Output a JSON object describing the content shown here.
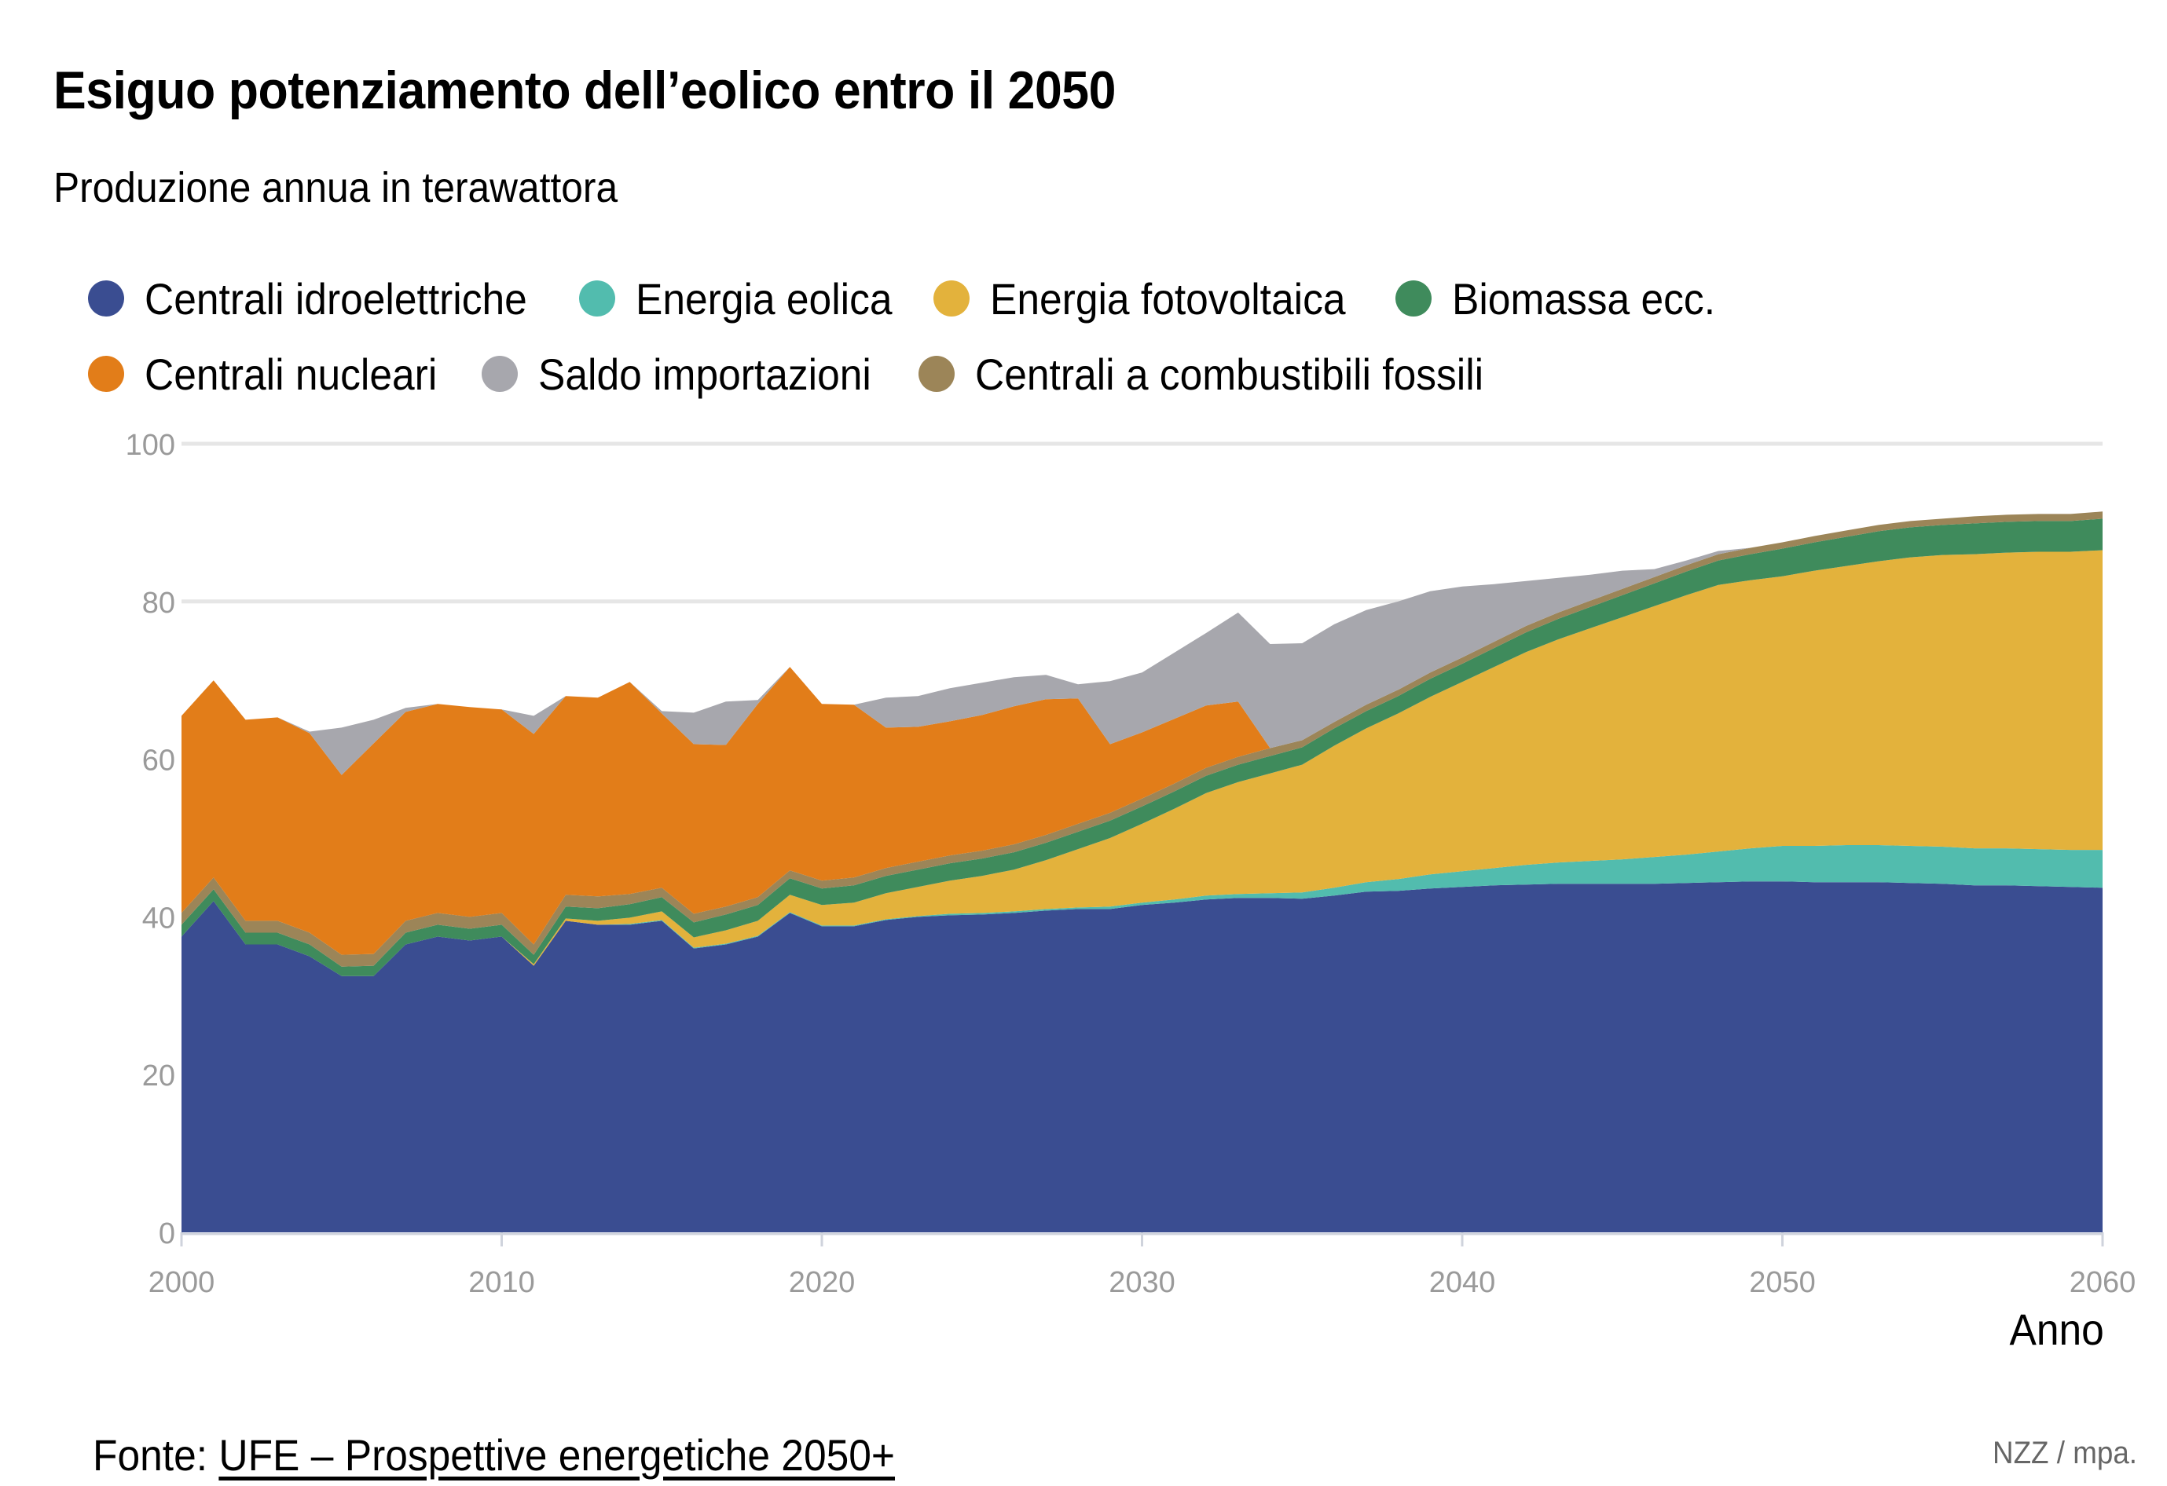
{
  "header": {
    "title": "Esiguo potenziamento dell’eolico entro il 2050",
    "subtitle": "Produzione annua in terawattora"
  },
  "legend": {
    "items": [
      {
        "key": "hydro",
        "label": "Centrali idroelettriche",
        "color": "#3a4d91"
      },
      {
        "key": "wind",
        "label": "Energia eolica",
        "color": "#52bcae"
      },
      {
        "key": "solar",
        "label": "Energia fotovoltaica",
        "color": "#e3b23c"
      },
      {
        "key": "biomass",
        "label": "Biomassa ecc.",
        "color": "#3f8b5c"
      },
      {
        "key": "nuclear",
        "label": "Centrali nucleari",
        "color": "#e27d19"
      },
      {
        "key": "imports",
        "label": "Saldo importazioni",
        "color": "#a7a7ad"
      },
      {
        "key": "fossil",
        "label": "Centrali a combustibili fossili",
        "color": "#9c8558"
      }
    ]
  },
  "footer": {
    "source_prefix": "Fonte: ",
    "source_link": "UFE – Prospettive energetiche 2050+",
    "credit": "NZZ / mpa."
  },
  "chart_data": {
    "type": "area",
    "stacked": true,
    "title": "Esiguo potenziamento dell’eolico entro il 2050",
    "subtitle": "Produzione annua in terawattora",
    "xlabel": "Anno",
    "ylabel": "",
    "xlim": [
      2000,
      2060
    ],
    "ylim": [
      0,
      100
    ],
    "xticks": [
      2000,
      2010,
      2020,
      2030,
      2040,
      2050,
      2060
    ],
    "yticks": [
      0,
      20,
      40,
      60,
      80,
      100
    ],
    "grid": "horizontal",
    "legend_position": "top",
    "stack_order": [
      "hydro",
      "wind",
      "solar",
      "biomass",
      "fossil",
      "nuclear",
      "imports"
    ],
    "x": [
      2000,
      2001,
      2002,
      2003,
      2004,
      2005,
      2006,
      2007,
      2008,
      2009,
      2010,
      2011,
      2012,
      2013,
      2014,
      2015,
      2016,
      2017,
      2018,
      2019,
      2020,
      2021,
      2022,
      2023,
      2024,
      2025,
      2026,
      2027,
      2028,
      2029,
      2030,
      2031,
      2032,
      2033,
      2034,
      2035,
      2036,
      2037,
      2038,
      2039,
      2040,
      2041,
      2042,
      2043,
      2044,
      2045,
      2046,
      2047,
      2048,
      2049,
      2050,
      2051,
      2052,
      2053,
      2054,
      2055,
      2056,
      2057,
      2058,
      2059,
      2060
    ],
    "series": [
      {
        "key": "hydro",
        "name": "Centrali idroelettriche",
        "values": [
          37.5,
          42.0,
          36.5,
          36.5,
          35.0,
          32.5,
          32.5,
          36.5,
          37.5,
          37.0,
          37.5,
          33.8,
          39.5,
          39.0,
          39.0,
          39.5,
          36.0,
          36.5,
          37.5,
          40.5,
          38.8,
          38.8,
          39.6,
          40.0,
          40.2,
          40.3,
          40.5,
          40.8,
          41.0,
          41.0,
          41.5,
          41.8,
          42.2,
          42.4,
          42.4,
          42.3,
          42.7,
          43.2,
          43.3,
          43.6,
          43.8,
          44.0,
          44.1,
          44.2,
          44.2,
          44.2,
          44.2,
          44.3,
          44.4,
          44.5,
          44.5,
          44.4,
          44.4,
          44.4,
          44.3,
          44.2,
          44.0,
          44.0,
          43.9,
          43.8,
          43.7
        ]
      },
      {
        "key": "wind",
        "name": "Energia eolica",
        "values": [
          0,
          0,
          0,
          0,
          0,
          0,
          0,
          0,
          0,
          0,
          0,
          0,
          0,
          0,
          0.1,
          0.1,
          0.1,
          0.1,
          0.1,
          0.1,
          0.1,
          0.1,
          0.1,
          0.1,
          0.2,
          0.2,
          0.2,
          0.2,
          0.2,
          0.3,
          0.3,
          0.4,
          0.5,
          0.5,
          0.6,
          0.8,
          1.0,
          1.2,
          1.5,
          1.8,
          2.0,
          2.2,
          2.5,
          2.7,
          2.9,
          3.1,
          3.4,
          3.6,
          3.9,
          4.2,
          4.5,
          4.6,
          4.7,
          4.7,
          4.7,
          4.7,
          4.7,
          4.7,
          4.7,
          4.7,
          4.8
        ]
      },
      {
        "key": "solar",
        "name": "Energia fotovoltaica",
        "values": [
          0,
          0,
          0,
          0,
          0,
          0,
          0,
          0,
          0,
          0,
          0,
          0.2,
          0.3,
          0.5,
          0.8,
          1.1,
          1.3,
          1.7,
          1.9,
          2.2,
          2.6,
          2.9,
          3.3,
          3.7,
          4.2,
          4.7,
          5.3,
          6.2,
          7.4,
          8.7,
          10.0,
          11.5,
          13.0,
          14.2,
          15.2,
          16.2,
          18.0,
          19.5,
          21.0,
          22.5,
          24.0,
          25.5,
          27.0,
          28.3,
          29.5,
          30.7,
          31.8,
          32.9,
          33.8,
          34.0,
          34.2,
          34.9,
          35.4,
          36.0,
          36.6,
          37.0,
          37.3,
          37.5,
          37.7,
          37.8,
          38.0
        ]
      },
      {
        "key": "biomass",
        "name": "Biomassa ecc.",
        "values": [
          1.5,
          1.5,
          1.5,
          1.5,
          1.5,
          1.2,
          1.3,
          1.5,
          1.5,
          1.5,
          1.5,
          1.2,
          1.5,
          1.6,
          1.7,
          1.8,
          1.9,
          2.0,
          2.0,
          2.1,
          2.1,
          2.2,
          2.2,
          2.2,
          2.2,
          2.2,
          2.2,
          2.2,
          2.2,
          2.2,
          2.2,
          2.2,
          2.2,
          2.2,
          2.2,
          2.2,
          2.2,
          2.2,
          2.2,
          2.3,
          2.3,
          2.4,
          2.5,
          2.6,
          2.7,
          2.8,
          2.9,
          3.0,
          3.1,
          3.3,
          3.5,
          3.6,
          3.7,
          3.8,
          3.8,
          3.8,
          3.9,
          3.9,
          3.9,
          3.9,
          4.0
        ]
      },
      {
        "key": "fossil",
        "name": "Centrali a combustibili fossili",
        "values": [
          1.5,
          1.5,
          1.5,
          1.5,
          1.5,
          1.5,
          1.5,
          1.5,
          1.5,
          1.5,
          1.5,
          1.3,
          1.5,
          1.5,
          1.3,
          1.2,
          1.1,
          1.0,
          1.0,
          1.0,
          1.0,
          1.0,
          1.0,
          1.0,
          1.0,
          1.0,
          1.0,
          1.0,
          1.0,
          1.0,
          1.0,
          1.0,
          1.0,
          1.0,
          1.0,
          0.9,
          0.8,
          0.8,
          0.8,
          0.8,
          0.8,
          0.8,
          0.8,
          0.8,
          0.8,
          0.8,
          0.8,
          0.8,
          0.8,
          0.8,
          0.8,
          0.8,
          0.8,
          0.8,
          0.8,
          0.8,
          0.9,
          0.9,
          0.9,
          0.9,
          0.9
        ]
      },
      {
        "key": "nuclear",
        "name": "Centrali nucleari",
        "values": [
          25.0,
          25.0,
          25.5,
          25.8,
          25.3,
          22.8,
          26.7,
          26.5,
          26.5,
          26.6,
          25.8,
          26.7,
          25.2,
          25.2,
          26.9,
          22.1,
          21.5,
          20.5,
          24.5,
          25.8,
          22.4,
          21.9,
          17.8,
          17.1,
          17.0,
          17.2,
          17.5,
          17.2,
          15.9,
          8.7,
          8.4,
          8.2,
          7.9,
          7.0,
          0,
          0,
          0,
          0,
          0,
          0,
          0,
          0,
          0,
          0,
          0,
          0,
          0,
          0,
          0,
          0,
          0,
          0,
          0,
          0,
          0,
          0,
          0,
          0,
          0,
          0,
          0
        ]
      },
      {
        "key": "imports",
        "name": "Saldo importazioni",
        "values": [
          0,
          0,
          0,
          0,
          0.2,
          6.0,
          3.0,
          0.5,
          0,
          0,
          0,
          2.3,
          0,
          0,
          0,
          0.3,
          4.0,
          5.5,
          0.5,
          0,
          0,
          0,
          3.8,
          3.9,
          4.2,
          4.1,
          3.7,
          3.1,
          1.8,
          8.0,
          7.6,
          8.4,
          9.2,
          11.3,
          13.2,
          12.3,
          12.4,
          12.0,
          11.2,
          10.3,
          9.0,
          7.3,
          5.7,
          4.4,
          3.3,
          2.3,
          1.0,
          0.6,
          0.4,
          0,
          0,
          0,
          0,
          0,
          0,
          0,
          0,
          0,
          0,
          0,
          0
        ]
      }
    ]
  }
}
